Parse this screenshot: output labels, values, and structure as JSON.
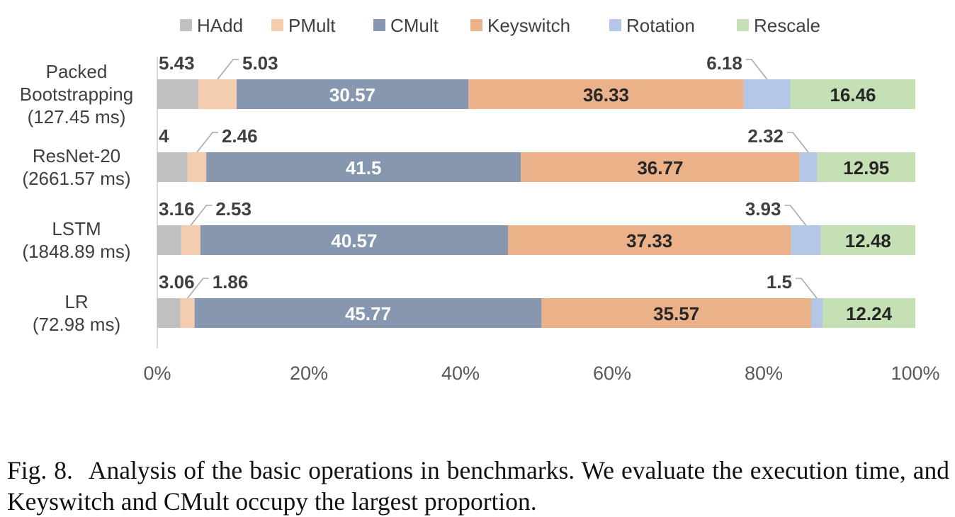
{
  "chart_data": {
    "type": "bar",
    "orientation": "horizontal",
    "stacked": "percent",
    "categories": [
      [
        "Packed",
        "Bootstrapping",
        "(127.45 ms)"
      ],
      [
        "ResNet-20",
        "(2661.57 ms)"
      ],
      [
        "LSTM",
        "(1848.89 ms)"
      ],
      [
        "LR",
        "(72.98 ms)"
      ]
    ],
    "series": [
      {
        "name": "HAdd",
        "color": "#c0c0c0",
        "values": [
          5.43,
          4,
          3.16,
          3.06
        ]
      },
      {
        "name": "PMult",
        "color": "#f4cdb0",
        "values": [
          5.03,
          2.46,
          2.53,
          1.86
        ]
      },
      {
        "name": "CMult",
        "color": "#8797b0",
        "values": [
          30.57,
          41.5,
          40.57,
          45.77
        ]
      },
      {
        "name": "Keyswitch",
        "color": "#ebb28a",
        "values": [
          36.33,
          36.77,
          37.33,
          35.57
        ]
      },
      {
        "name": "Rotation",
        "color": "#b4c7e7",
        "values": [
          6.18,
          2.32,
          3.93,
          1.5
        ]
      },
      {
        "name": "Rescale",
        "color": "#c5e0b4",
        "values": [
          16.46,
          12.95,
          12.48,
          12.24
        ]
      }
    ],
    "data_labels": [
      [
        "5.43",
        "5.03",
        "30.57",
        "36.33",
        "6.18",
        "16.46"
      ],
      [
        "4",
        "2.46",
        "41.5",
        "36.77",
        "2.32",
        "12.95"
      ],
      [
        "3.16",
        "2.53",
        "40.57",
        "37.33",
        "3.93",
        "12.48"
      ],
      [
        "3.06",
        "1.86",
        "45.77",
        "35.57",
        "1.5",
        "12.24"
      ]
    ],
    "x_ticks": [
      "0%",
      "20%",
      "40%",
      "60%",
      "80%",
      "100%"
    ],
    "xlim": [
      0,
      100
    ],
    "legend_position": "top",
    "grid": false
  },
  "caption": {
    "label": "Fig. 8.",
    "text": "Analysis of the basic operations in benchmarks. We evaluate the execution time, and Keyswitch and CMult occupy the largest proportion."
  }
}
